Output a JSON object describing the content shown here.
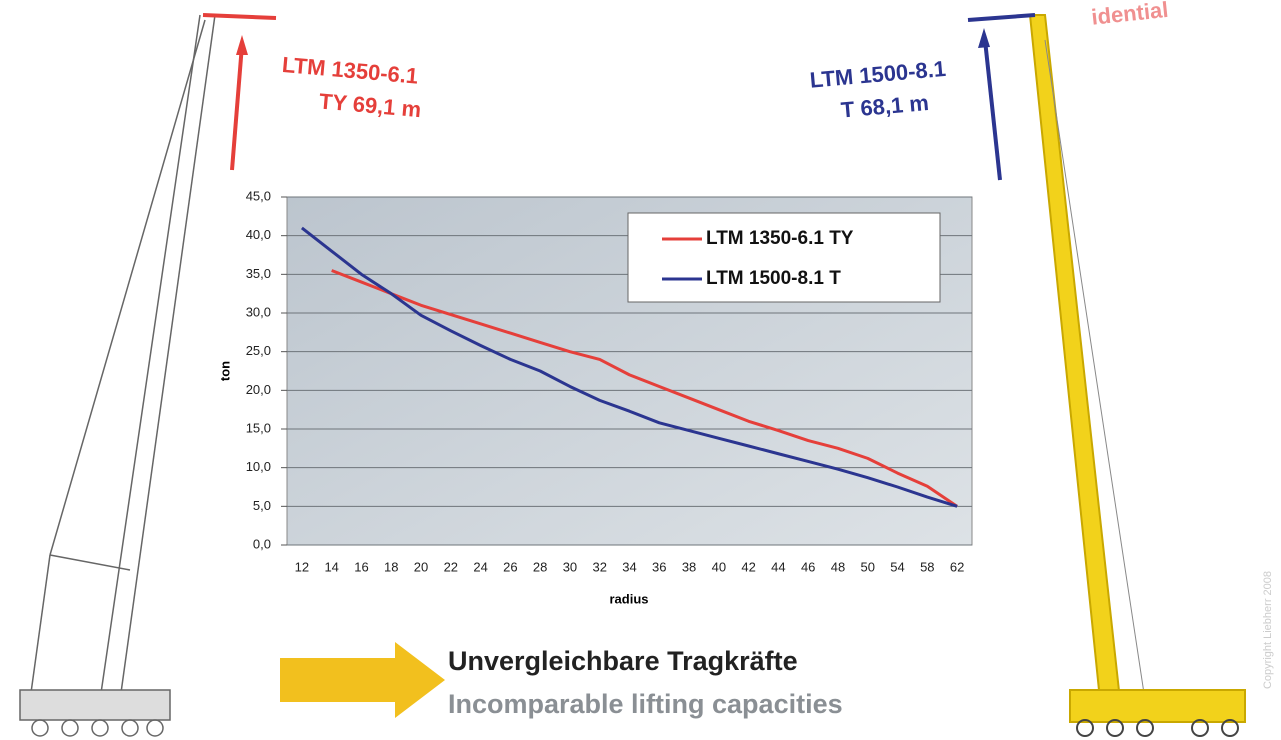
{
  "chart_data": {
    "type": "line",
    "y_label": "ton",
    "x_label": "radius",
    "categories": [
      "12",
      "14",
      "16",
      "18",
      "20",
      "22",
      "24",
      "26",
      "28",
      "30",
      "32",
      "34",
      "36",
      "38",
      "40",
      "42",
      "44",
      "46",
      "48",
      "50",
      "54",
      "58",
      "62"
    ],
    "series": [
      {
        "name": "LTM 1350-6.1 TY",
        "color": "#e53f3a",
        "values": [
          null,
          35.5,
          34,
          32.5,
          31,
          29.8,
          28.6,
          27.4,
          26.2,
          25,
          24,
          22,
          20.5,
          19,
          17.5,
          16,
          14.8,
          13.5,
          12.5,
          11.2,
          9.3,
          7.6,
          5
        ]
      },
      {
        "name": "LTM 1500-8.1 T",
        "color": "#2b3590",
        "values": [
          41,
          38,
          35,
          32.5,
          29.7,
          27.7,
          25.8,
          24,
          22.5,
          20.5,
          18.7,
          17.3,
          15.8,
          14.8,
          13.8,
          12.8,
          11.8,
          10.8,
          9.8,
          8.7,
          7.5,
          6.2,
          5
        ]
      }
    ],
    "ylim": [
      0,
      45
    ],
    "yticks": [
      {
        "value": 0,
        "label": "0,0"
      },
      {
        "value": 5,
        "label": "5,0"
      },
      {
        "value": 10,
        "label": "10,0"
      },
      {
        "value": 15,
        "label": "15,0"
      },
      {
        "value": 20,
        "label": "20,0"
      },
      {
        "value": 25,
        "label": "25,0"
      },
      {
        "value": 30,
        "label": "30,0"
      },
      {
        "value": 35,
        "label": "35,0"
      },
      {
        "value": 40,
        "label": "40,0"
      },
      {
        "value": 45,
        "label": "45,0"
      }
    ],
    "grid": true,
    "legend": "top-right",
    "annotations": [
      "LTM 1350-6.1",
      "TY 69,1 m",
      "LTM 1500-8.1",
      "T 68,1 m",
      "idential",
      "Unvergleichbare Tragkräfte",
      "Incomparable lifting capacities",
      "Copyright Liebherr 2008"
    ]
  }
}
